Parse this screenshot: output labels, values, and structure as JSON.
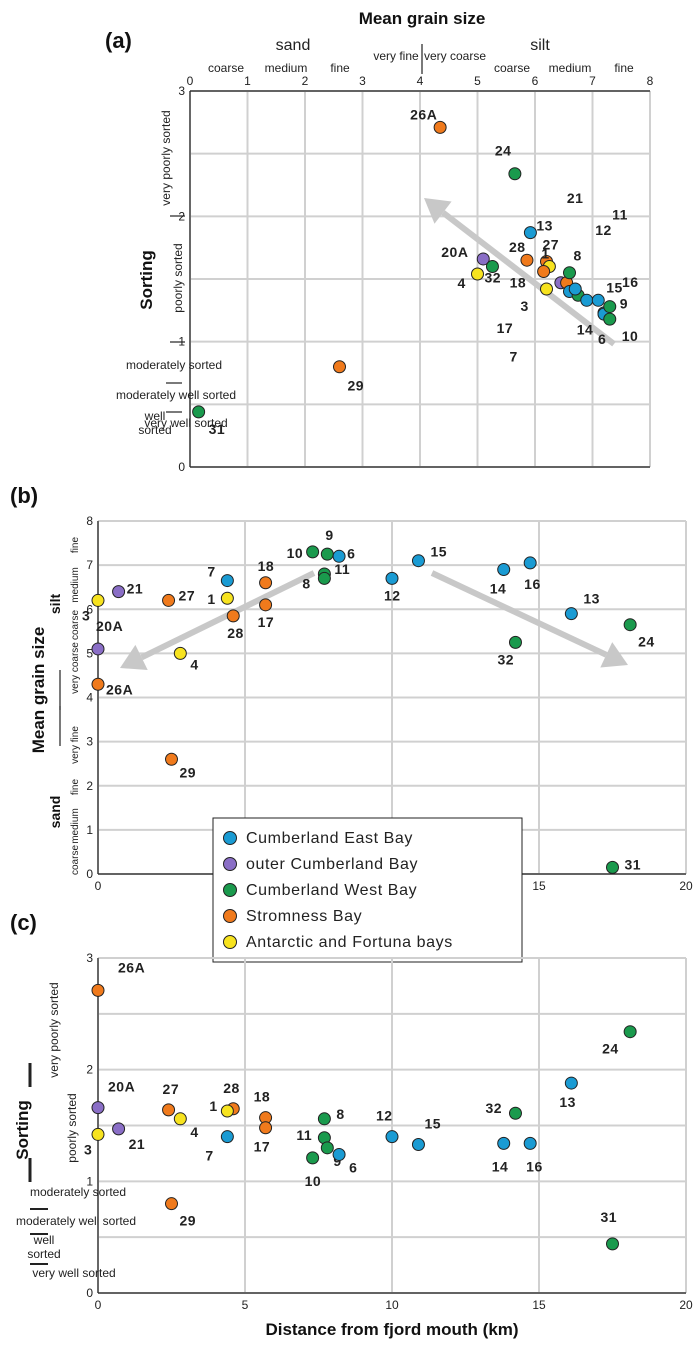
{
  "figure": {
    "x_axis_title": "Mean grain size",
    "distance_title": "Distance from fjord mouth (km)",
    "sorting_title": "Sorting",
    "mean_title": "Mean grain size"
  },
  "colors": {
    "Cumberland East Bay": "#1a9bd3",
    "outer Cumberland Bay": "#8a6ec6",
    "Cumberland West Bay": "#1a9a4d",
    "Stromness Bay": "#f07a1c",
    "Antarctic and Fortuna bays": "#f7e31f"
  },
  "legend": {
    "items": [
      "Cumberland East Bay",
      "outer Cumberland Bay",
      "Cumberland West Bay",
      "Stromness Bay",
      "Antarctic and Fortuna bays"
    ]
  },
  "chart_data": [
    {
      "panel": "(a)",
      "type": "scatter",
      "xlabel": "Mean grain size",
      "ylabel": "Sorting",
      "xlim": [
        0,
        8
      ],
      "ylim": [
        0,
        3
      ],
      "x_ticks": [
        "0",
        "1",
        "2",
        "3",
        "4",
        "5",
        "6",
        "7",
        "8"
      ],
      "y_ticks": [
        "0",
        "1",
        "2",
        "3"
      ],
      "x_classes_top": {
        "sand": "sand",
        "silt": "silt"
      },
      "x_classes": [
        "coarse",
        "medium",
        "fine",
        "very fine",
        "very coarse",
        "coarse",
        "medium",
        "fine"
      ],
      "y_classes": [
        "very poorly sorted",
        "poorly sorted",
        "moderately sorted",
        "moderately well sorted",
        "well sorted",
        "very well sorted"
      ],
      "points": [
        {
          "label": "26A",
          "group": "Stromness Bay",
          "x": 4.35,
          "y": 2.71
        },
        {
          "label": "24",
          "group": "Cumberland West Bay",
          "x": 5.65,
          "y": 2.34
        },
        {
          "label": "13",
          "group": "Cumberland East Bay",
          "x": 5.92,
          "y": 1.87
        },
        {
          "label": "20A",
          "group": "outer Cumberland Bay",
          "x": 5.1,
          "y": 1.66
        },
        {
          "label": "32",
          "group": "Cumberland West Bay",
          "x": 5.26,
          "y": 1.6
        },
        {
          "label": "4",
          "group": "Antarctic and Fortuna bays",
          "x": 5.0,
          "y": 1.54
        },
        {
          "label": "28",
          "group": "Stromness Bay",
          "x": 5.86,
          "y": 1.65
        },
        {
          "label": "27",
          "group": "Stromness Bay",
          "x": 6.2,
          "y": 1.64
        },
        {
          "label": "1",
          "group": "Antarctic and Fortuna bays",
          "x": 6.25,
          "y": 1.6
        },
        {
          "label": "18",
          "group": "Stromness Bay",
          "x": 6.15,
          "y": 1.56
        },
        {
          "label": "3",
          "group": "Antarctic and Fortuna bays",
          "x": 6.2,
          "y": 1.42
        },
        {
          "label": "21",
          "group": "outer Cumberland Bay",
          "x": 6.45,
          "y": 1.47
        },
        {
          "label": "17",
          "group": "Stromness Bay",
          "x": 6.55,
          "y": 1.47
        },
        {
          "label": "8",
          "group": "Cumberland West Bay",
          "x": 6.6,
          "y": 1.55
        },
        {
          "label": "7",
          "group": "Cumberland East Bay",
          "x": 6.6,
          "y": 1.4
        },
        {
          "label": "11",
          "group": "Cumberland West Bay",
          "x": 6.75,
          "y": 1.37
        },
        {
          "label": "14",
          "group": "Cumberland East Bay",
          "x": 6.9,
          "y": 1.33
        },
        {
          "label": "12",
          "group": "Cumberland East Bay",
          "x": 6.7,
          "y": 1.42
        },
        {
          "label": "15",
          "group": "Cumberland East Bay",
          "x": 7.1,
          "y": 1.33
        },
        {
          "label": "16",
          "group": "Cumberland East Bay",
          "x": 7.2,
          "y": 1.23
        },
        {
          "label": "6",
          "group": "Cumberland East Bay",
          "x": 7.2,
          "y": 1.22
        },
        {
          "label": "9",
          "group": "Cumberland West Bay",
          "x": 7.3,
          "y": 1.28
        },
        {
          "label": "10",
          "group": "Cumberland West Bay",
          "x": 7.3,
          "y": 1.18
        },
        {
          "label": "29",
          "group": "Stromness Bay",
          "x": 2.6,
          "y": 0.8
        },
        {
          "label": "31",
          "group": "Cumberland West Bay",
          "x": 0.15,
          "y": 0.44
        }
      ]
    },
    {
      "panel": "(b)",
      "type": "scatter",
      "xlabel": "Distance from fjord mouth (km)",
      "ylabel": "Mean grain size",
      "xlim": [
        0,
        20
      ],
      "ylim": [
        0,
        8
      ],
      "x_ticks": [
        "0",
        "5",
        "10",
        "15",
        "20"
      ],
      "y_ticks": [
        "0",
        "1",
        "2",
        "3",
        "4",
        "5",
        "6",
        "7",
        "8"
      ],
      "y_classes_group": {
        "silt": "silt",
        "sand": "sand"
      },
      "y_classes": [
        "fine",
        "medium",
        "coarse",
        "very coarse",
        "very fine",
        "fine",
        "medium",
        "coarse"
      ],
      "points": [
        {
          "label": "3",
          "group": "Antarctic and Fortuna bays",
          "x": 0,
          "y": 6.2
        },
        {
          "label": "21",
          "group": "outer Cumberland Bay",
          "x": 0.7,
          "y": 6.4
        },
        {
          "label": "20A",
          "group": "outer Cumberland Bay",
          "x": 0,
          "y": 5.1
        },
        {
          "label": "26A",
          "group": "Stromness Bay",
          "x": 0,
          "y": 4.3
        },
        {
          "label": "27",
          "group": "Stromness Bay",
          "x": 2.4,
          "y": 6.2
        },
        {
          "label": "4",
          "group": "Antarctic and Fortuna bays",
          "x": 2.8,
          "y": 5.0
        },
        {
          "label": "29",
          "group": "Stromness Bay",
          "x": 2.5,
          "y": 2.6
        },
        {
          "label": "7",
          "group": "Cumberland East Bay",
          "x": 4.4,
          "y": 6.65
        },
        {
          "label": "1",
          "group": "Antarctic and Fortuna bays",
          "x": 4.4,
          "y": 6.25
        },
        {
          "label": "28",
          "group": "Stromness Bay",
          "x": 4.6,
          "y": 5.85
        },
        {
          "label": "18",
          "group": "Stromness Bay",
          "x": 5.7,
          "y": 6.6
        },
        {
          "label": "17",
          "group": "Stromness Bay",
          "x": 5.7,
          "y": 6.1
        },
        {
          "label": "10",
          "group": "Cumberland West Bay",
          "x": 7.3,
          "y": 7.3
        },
        {
          "label": "9",
          "group": "Cumberland West Bay",
          "x": 7.8,
          "y": 7.25
        },
        {
          "label": "6",
          "group": "Cumberland East Bay",
          "x": 8.2,
          "y": 7.2
        },
        {
          "label": "11",
          "group": "Cumberland West Bay",
          "x": 7.7,
          "y": 6.8
        },
        {
          "label": "8",
          "group": "Cumberland West Bay",
          "x": 7.7,
          "y": 6.7
        },
        {
          "label": "12",
          "group": "Cumberland East Bay",
          "x": 10.0,
          "y": 6.7
        },
        {
          "label": "15",
          "group": "Cumberland East Bay",
          "x": 10.9,
          "y": 7.1
        },
        {
          "label": "14",
          "group": "Cumberland East Bay",
          "x": 13.8,
          "y": 6.9
        },
        {
          "label": "16",
          "group": "Cumberland East Bay",
          "x": 14.7,
          "y": 7.05
        },
        {
          "label": "13",
          "group": "Cumberland East Bay",
          "x": 16.1,
          "y": 5.9
        },
        {
          "label": "32",
          "group": "Cumberland West Bay",
          "x": 14.2,
          "y": 5.25
        },
        {
          "label": "24",
          "group": "Cumberland West Bay",
          "x": 18.1,
          "y": 5.65
        },
        {
          "label": "31",
          "group": "Cumberland West Bay",
          "x": 17.5,
          "y": 0.15
        }
      ]
    },
    {
      "panel": "(c)",
      "type": "scatter",
      "xlabel": "Distance from fjord mouth (km)",
      "ylabel": "Sorting",
      "xlim": [
        0,
        20
      ],
      "ylim": [
        0,
        3
      ],
      "x_ticks": [
        "0",
        "5",
        "10",
        "15",
        "20"
      ],
      "y_ticks": [
        "0",
        "1",
        "2",
        "3"
      ],
      "y_classes": [
        "very poorly sorted",
        "poorly sorted",
        "moderately sorted",
        "moderately well sorted",
        "well sorted",
        "very well sorted"
      ],
      "points": [
        {
          "label": "26A",
          "group": "Stromness Bay",
          "x": 0,
          "y": 2.71
        },
        {
          "label": "20A",
          "group": "outer Cumberland Bay",
          "x": 0,
          "y": 1.66
        },
        {
          "label": "3",
          "group": "Antarctic and Fortuna bays",
          "x": 0,
          "y": 1.42
        },
        {
          "label": "21",
          "group": "outer Cumberland Bay",
          "x": 0.7,
          "y": 1.47
        },
        {
          "label": "27",
          "group": "Stromness Bay",
          "x": 2.4,
          "y": 1.64
        },
        {
          "label": "4",
          "group": "Antarctic and Fortuna bays",
          "x": 2.8,
          "y": 1.56
        },
        {
          "label": "29",
          "group": "Stromness Bay",
          "x": 2.5,
          "y": 0.8
        },
        {
          "label": "28",
          "group": "Stromness Bay",
          "x": 4.6,
          "y": 1.65
        },
        {
          "label": "1",
          "group": "Antarctic and Fortuna bays",
          "x": 4.4,
          "y": 1.63
        },
        {
          "label": "7",
          "group": "Cumberland East Bay",
          "x": 4.4,
          "y": 1.4
        },
        {
          "label": "18",
          "group": "Stromness Bay",
          "x": 5.7,
          "y": 1.57
        },
        {
          "label": "17",
          "group": "Stromness Bay",
          "x": 5.7,
          "y": 1.48
        },
        {
          "label": "8",
          "group": "Cumberland West Bay",
          "x": 7.7,
          "y": 1.56
        },
        {
          "label": "11",
          "group": "Cumberland West Bay",
          "x": 7.7,
          "y": 1.39
        },
        {
          "label": "9",
          "group": "Cumberland West Bay",
          "x": 7.8,
          "y": 1.3
        },
        {
          "label": "10",
          "group": "Cumberland West Bay",
          "x": 7.3,
          "y": 1.21
        },
        {
          "label": "6",
          "group": "Cumberland East Bay",
          "x": 8.2,
          "y": 1.24
        },
        {
          "label": "12",
          "group": "Cumberland East Bay",
          "x": 10.0,
          "y": 1.4
        },
        {
          "label": "15",
          "group": "Cumberland East Bay",
          "x": 10.9,
          "y": 1.33
        },
        {
          "label": "32",
          "group": "Cumberland West Bay",
          "x": 14.2,
          "y": 1.61
        },
        {
          "label": "14",
          "group": "Cumberland East Bay",
          "x": 13.8,
          "y": 1.34
        },
        {
          "label": "16",
          "group": "Cumberland East Bay",
          "x": 14.7,
          "y": 1.34
        },
        {
          "label": "13",
          "group": "Cumberland East Bay",
          "x": 16.1,
          "y": 1.88
        },
        {
          "label": "24",
          "group": "Cumberland West Bay",
          "x": 18.1,
          "y": 2.34
        },
        {
          "label": "31",
          "group": "Cumberland West Bay",
          "x": 17.5,
          "y": 0.44
        }
      ]
    }
  ]
}
